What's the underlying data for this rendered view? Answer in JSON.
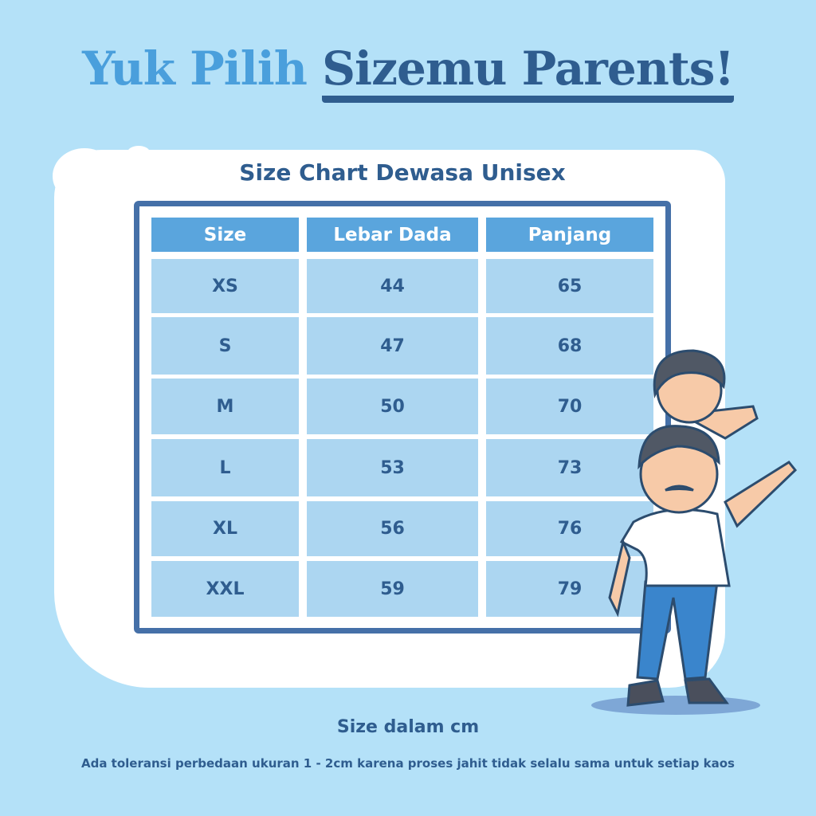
{
  "header": {
    "title_part1": "Yuk Pilih",
    "title_part2": "Sizemu Parents!"
  },
  "chart_title": "Size Chart Dewasa Unisex",
  "table": {
    "columns": [
      "Size",
      "Lebar Dada",
      "Panjang"
    ],
    "rows": [
      [
        "XS",
        "44",
        "65"
      ],
      [
        "S",
        "47",
        "68"
      ],
      [
        "M",
        "50",
        "70"
      ],
      [
        "L",
        "53",
        "73"
      ],
      [
        "XL",
        "56",
        "76"
      ],
      [
        "XXL",
        "59",
        "79"
      ]
    ]
  },
  "footer": {
    "unit_note": "Size dalam cm",
    "tolerance_note": "Ada toleransi perbedaan ukuran 1 - 2cm karena proses jahit tidak selalu sama untuk setiap kaos"
  },
  "colors": {
    "background": "#b4e1f8",
    "accent_light": "#4a9fdc",
    "accent_dark": "#2f5d8f",
    "header_cell": "#5aa5dd",
    "body_cell": "#acd6f1"
  }
}
